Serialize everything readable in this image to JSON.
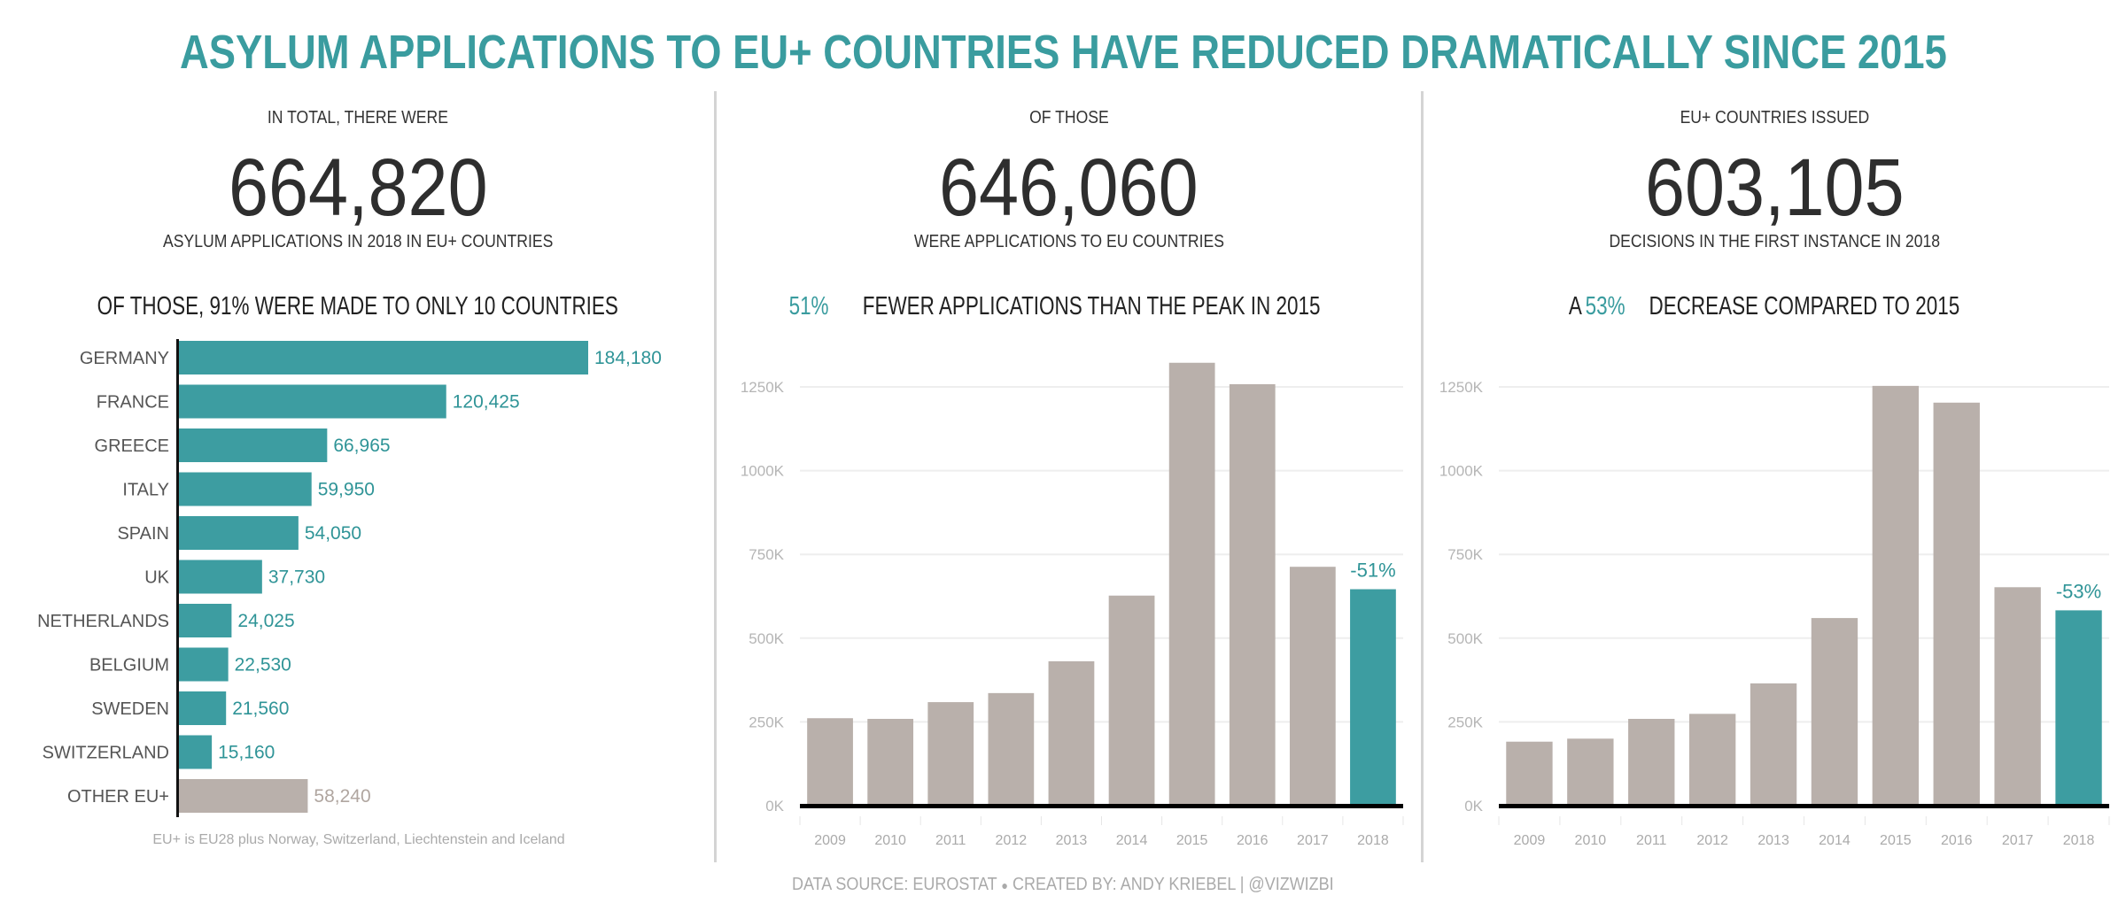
{
  "title": "ASYLUM APPLICATIONS TO EU+ COUNTRIES HAVE REDUCED DRAMATICALLY SINCE 2015",
  "colors": {
    "accent": "#3d9da1",
    "bar_gray": "#b9b0ab",
    "title": "#3a9c9f"
  },
  "panels": [
    {
      "intro": "IN TOTAL, THERE WERE",
      "number": "664,820",
      "sub": "ASYLUM APPLICATIONS IN 2018 IN EU+ COUNTRIES",
      "heading_pre": "OF THOSE, 91% WERE MADE TO ONLY 10 COUNTRIES",
      "heading_accent": "",
      "heading_post": ""
    },
    {
      "intro": "OF THOSE",
      "number": "646,060",
      "sub": "WERE APPLICATIONS TO EU COUNTRIES",
      "heading_pre": "",
      "heading_accent": "51%",
      "heading_post": " FEWER APPLICATIONS THAN THE PEAK IN 2015"
    },
    {
      "intro": "EU+ COUNTRIES ISSUED",
      "number": "603,105",
      "sub": "DECISIONS IN THE FIRST INSTANCE IN 2018",
      "heading_pre": "A ",
      "heading_accent": "53%",
      "heading_post": " DECREASE COMPARED TO 2015"
    }
  ],
  "footnote": "EU+ is EU28  plus Norway, Switzerland, Liechtenstein and Iceland",
  "footer": {
    "source": "DATA SOURCE: EUROSTAT",
    "separator": "●",
    "credit": "CREATED BY: ANDY KRIEBEL | @VIZWIZBI"
  },
  "chart_data": [
    {
      "type": "bar",
      "orientation": "horizontal",
      "categories": [
        "GERMANY",
        "FRANCE",
        "GREECE",
        "ITALY",
        "SPAIN",
        "UK",
        "NETHERLANDS",
        "BELGIUM",
        "SWEDEN",
        "SWITZERLAND",
        "OTHER EU+"
      ],
      "values": [
        184180,
        120425,
        66965,
        59950,
        54050,
        37730,
        24025,
        22530,
        21560,
        15160,
        58240
      ],
      "labels": [
        "184,180",
        "120,425",
        "66,965",
        "59,950",
        "54,050",
        "37,730",
        "24,025",
        "22,530",
        "21,560",
        "15,160",
        "58,240"
      ],
      "highlight": "all except OTHER EU+",
      "grid": false
    },
    {
      "type": "bar",
      "categories": [
        "2009",
        "2010",
        "2011",
        "2012",
        "2013",
        "2014",
        "2015",
        "2016",
        "2017",
        "2018"
      ],
      "values": [
        261000,
        259000,
        309000,
        336000,
        431000,
        627000,
        1322000,
        1258000,
        713000,
        646060
      ],
      "ylim": [
        0,
        1350000
      ],
      "yticks": [
        "0K",
        "250K",
        "500K",
        "750K",
        "1000K",
        "1250K"
      ],
      "annotation": {
        "category": "2018",
        "text": "-51%"
      },
      "highlight": "2018",
      "grid": true
    },
    {
      "type": "bar",
      "categories": [
        "2009",
        "2010",
        "2011",
        "2012",
        "2013",
        "2014",
        "2015",
        "2016",
        "2017",
        "2018"
      ],
      "values": [
        191000,
        200000,
        259000,
        274000,
        365000,
        560000,
        1253000,
        1203000,
        652000,
        583000
      ],
      "ylim": [
        0,
        1350000
      ],
      "yticks": [
        "0K",
        "250K",
        "500K",
        "750K",
        "1000K",
        "1250K"
      ],
      "annotation": {
        "category": "2018",
        "text": "-53%"
      },
      "highlight": "2018",
      "grid": true
    }
  ]
}
